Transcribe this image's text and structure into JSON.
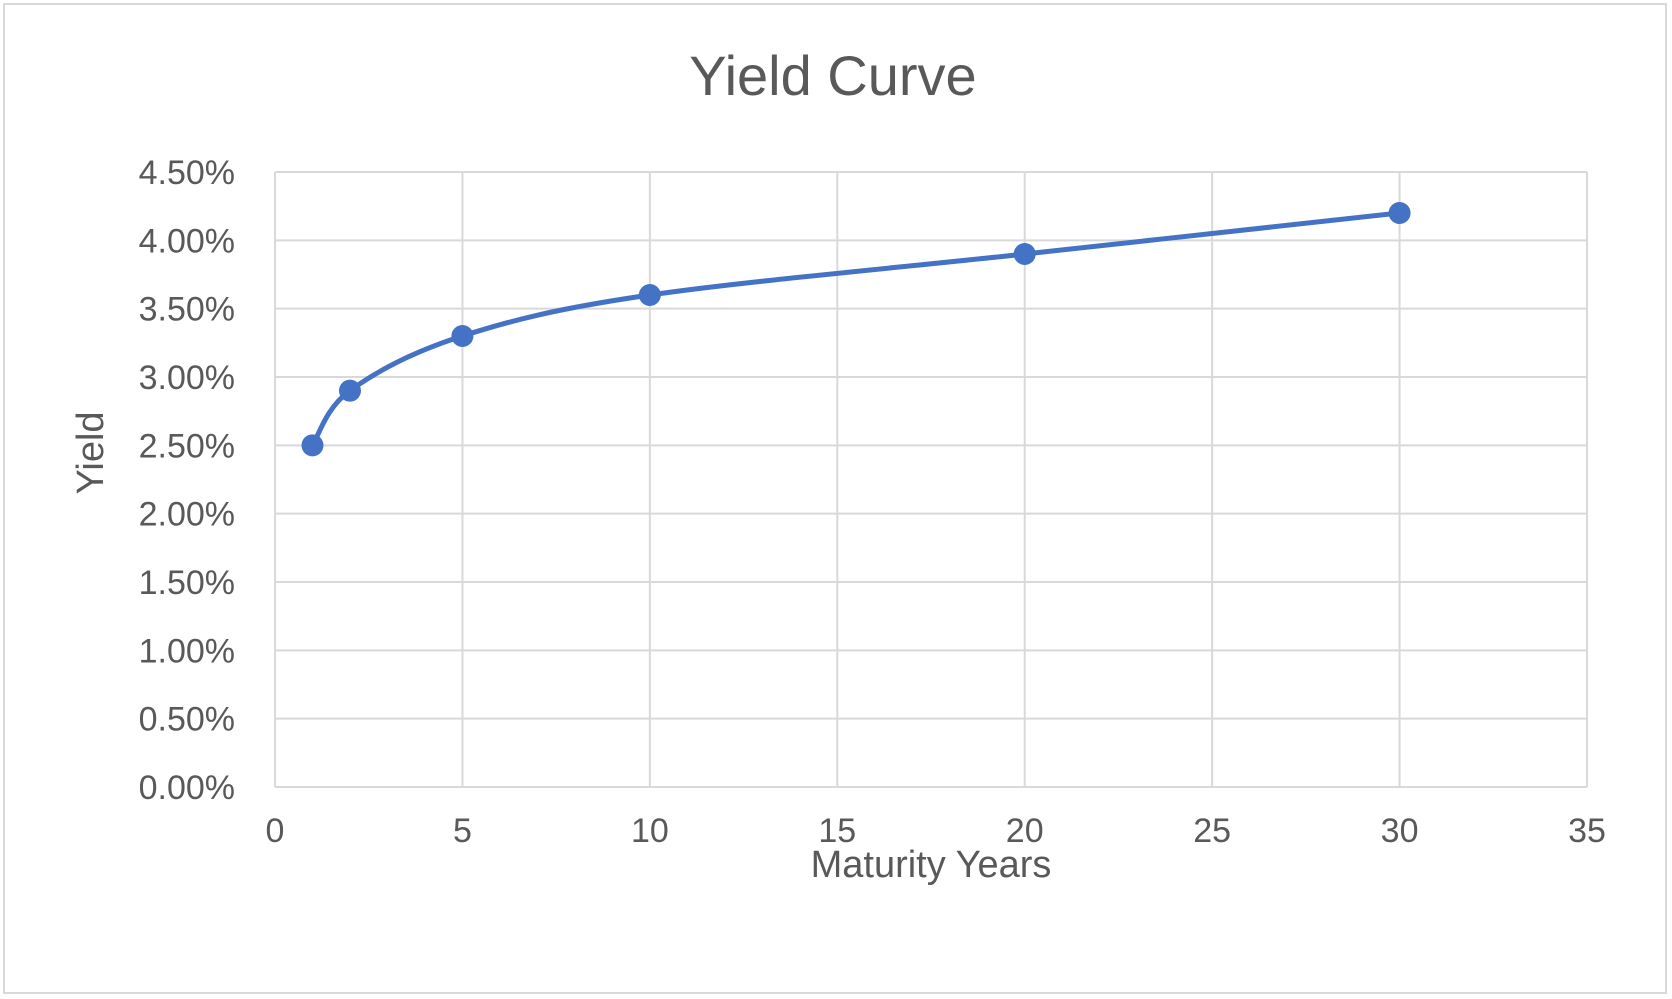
{
  "chart_data": {
    "type": "scatter",
    "title": "Yield Curve",
    "xlabel": "Maturity Years",
    "ylabel": "Yield",
    "xlim": [
      0,
      35
    ],
    "ylim": [
      0,
      0.045
    ],
    "x_ticks": [
      0,
      5,
      10,
      15,
      20,
      25,
      30,
      35
    ],
    "x_tick_labels": [
      "0",
      "5",
      "10",
      "15",
      "20",
      "25",
      "30",
      "35"
    ],
    "y_ticks": [
      0,
      0.005,
      0.01,
      0.015,
      0.02,
      0.025,
      0.03,
      0.035,
      0.04,
      0.045
    ],
    "y_tick_labels": [
      "0.00%",
      "0.50%",
      "1.00%",
      "1.50%",
      "2.00%",
      "2.50%",
      "3.00%",
      "3.50%",
      "4.00%",
      "4.50%"
    ],
    "grid": true,
    "smoothed_line": true,
    "series": [
      {
        "x": [
          1,
          2,
          5,
          10,
          20,
          30
        ],
        "y": [
          0.025,
          0.029,
          0.033,
          0.036,
          0.039,
          0.042
        ],
        "color": "#4472c4"
      }
    ]
  }
}
